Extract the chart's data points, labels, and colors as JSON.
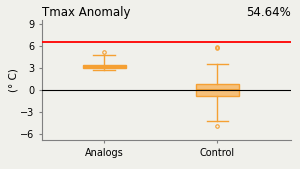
{
  "title": "Tmax Anomaly",
  "subtitle": "54.64%",
  "ylabel": "(° C)",
  "ylim": [
    -6.8,
    9.5
  ],
  "yticks": [
    -6,
    -3,
    0,
    3,
    6,
    9
  ],
  "categories": [
    "Analogs",
    "Control"
  ],
  "red_line_y": 6.5,
  "zero_line_y": 0,
  "analogs": {
    "med": 3.2,
    "q1": 3.05,
    "q3": 3.38,
    "whislo": 2.72,
    "whishi": 4.8,
    "fliers": [
      5.2
    ]
  },
  "control": {
    "med": 0.08,
    "q1": -0.75,
    "q3": 0.82,
    "whislo": -4.2,
    "whishi": 3.5,
    "fliers": [
      -4.9,
      5.8,
      5.9
    ]
  },
  "box_width": 0.38,
  "orange_color": "#f5a033",
  "orange_face": "#f5c07a",
  "bg_color": "#f0f0eb",
  "title_fontsize": 8.5,
  "label_fontsize": 7.5,
  "tick_fontsize": 7
}
